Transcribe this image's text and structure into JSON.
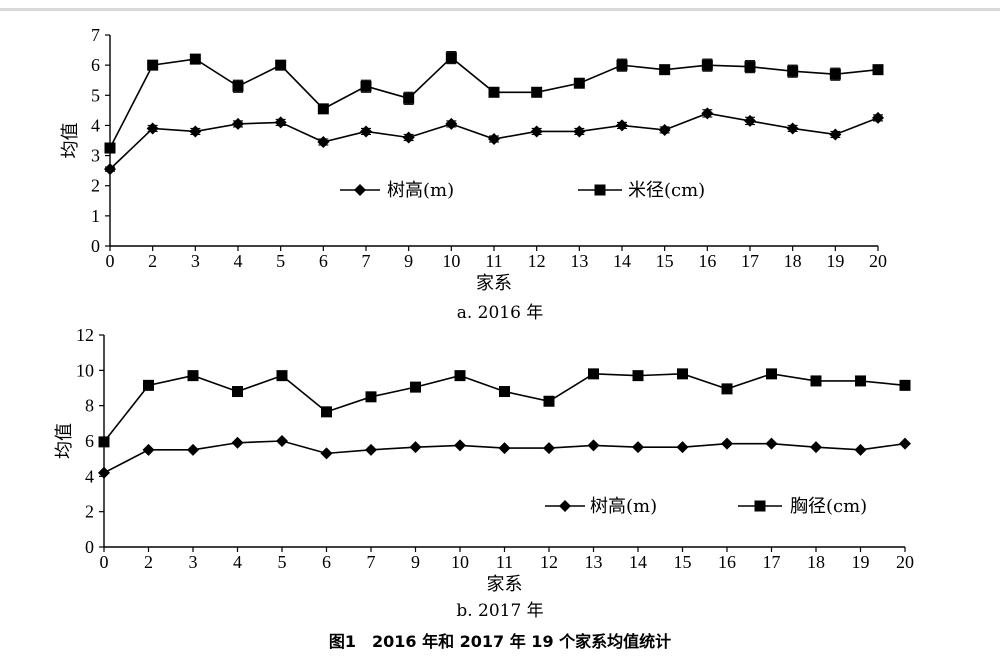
{
  "figure_caption": "图1　2016 年和 2017 年 19 个家系均值统计",
  "chart_data": [
    {
      "type": "line",
      "caption": "a. 2016 年",
      "xlabel": "家系",
      "ylabel": "均值",
      "categories": [
        "0",
        "2",
        "3",
        "4",
        "5",
        "6",
        "7",
        "9",
        "10",
        "11",
        "12",
        "13",
        "14",
        "15",
        "16",
        "17",
        "18",
        "19",
        "20"
      ],
      "ylim": [
        0,
        7
      ],
      "yticks": [
        0,
        1,
        2,
        3,
        4,
        5,
        6,
        7
      ],
      "grid": false,
      "legend_position": "center-right",
      "error_bars": true,
      "series": [
        {
          "name": "树高(m)",
          "marker": "diamond",
          "values": [
            2.55,
            3.9,
            3.8,
            4.05,
            4.1,
            3.45,
            3.8,
            3.6,
            4.05,
            3.55,
            3.8,
            3.8,
            4.0,
            3.85,
            4.4,
            4.15,
            3.9,
            3.7,
            4.25
          ],
          "errors": [
            0.07,
            0.1,
            0.1,
            0.1,
            0.1,
            0.1,
            0.1,
            0.1,
            0.1,
            0.1,
            0.1,
            0.1,
            0.1,
            0.1,
            0.12,
            0.12,
            0.1,
            0.1,
            0.1
          ]
        },
        {
          "name": "米径(cm)",
          "marker": "square",
          "values": [
            3.25,
            6.0,
            6.2,
            5.3,
            6.0,
            4.55,
            5.3,
            4.9,
            6.25,
            5.1,
            5.1,
            5.4,
            6.0,
            5.85,
            6.0,
            5.95,
            5.8,
            5.7,
            5.85
          ],
          "errors": [
            0.15,
            0.1,
            0.1,
            0.2,
            0.1,
            0.15,
            0.2,
            0.2,
            0.2,
            0.1,
            0.1,
            0.15,
            0.2,
            0.15,
            0.2,
            0.2,
            0.2,
            0.2,
            0.15
          ]
        }
      ]
    },
    {
      "type": "line",
      "caption": "b. 2017 年",
      "xlabel": "家系",
      "ylabel": "均值",
      "categories": [
        "0",
        "2",
        "3",
        "4",
        "5",
        "6",
        "7",
        "9",
        "10",
        "11",
        "12",
        "13",
        "14",
        "15",
        "16",
        "17",
        "18",
        "19",
        "20"
      ],
      "ylim": [
        0,
        12
      ],
      "yticks": [
        0,
        2,
        4,
        6,
        8,
        10,
        12
      ],
      "grid": false,
      "legend_position": "lower-right",
      "error_bars": false,
      "series": [
        {
          "name": "树高(m)",
          "marker": "diamond",
          "values": [
            4.2,
            5.5,
            5.5,
            5.9,
            6.0,
            5.3,
            5.5,
            5.65,
            5.75,
            5.6,
            5.6,
            5.75,
            5.65,
            5.65,
            5.85,
            5.85,
            5.65,
            5.5,
            5.85
          ]
        },
        {
          "name": "胸径(cm)",
          "marker": "square",
          "values": [
            5.95,
            9.15,
            9.7,
            8.8,
            9.7,
            7.65,
            8.5,
            9.05,
            9.7,
            8.8,
            8.25,
            9.8,
            9.7,
            9.8,
            8.95,
            9.8,
            9.4,
            9.4,
            9.15
          ]
        }
      ]
    }
  ]
}
